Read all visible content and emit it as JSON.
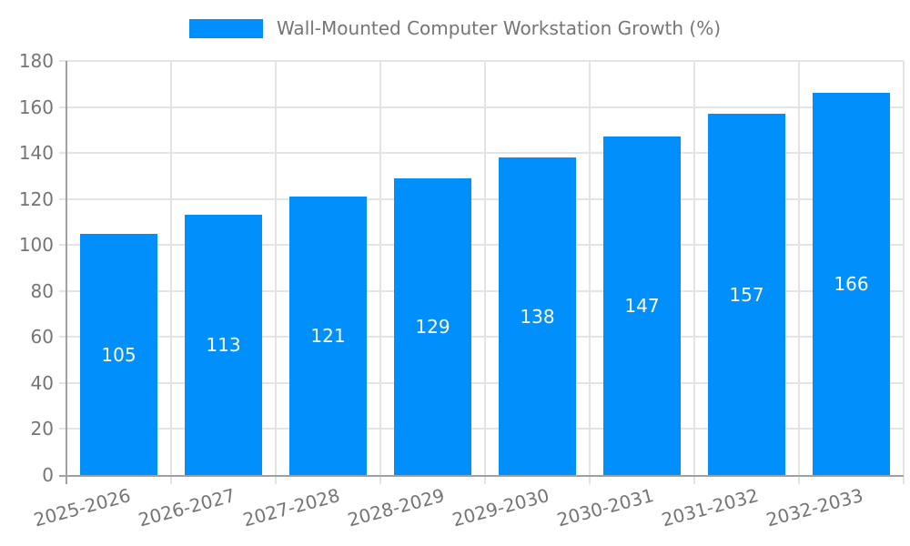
{
  "legend": {
    "label": "Wall-Mounted Computer Workstation Growth (%)"
  },
  "chart_data": {
    "type": "bar",
    "title": "",
    "series_name": "Wall-Mounted Computer Workstation Growth (%)",
    "categories": [
      "2025-2026",
      "2026-2027",
      "2027-2028",
      "2028-2029",
      "2029-2030",
      "2030-2031",
      "2031-2032",
      "2032-2033"
    ],
    "values": [
      105,
      113,
      121,
      129,
      138,
      147,
      157,
      166
    ],
    "bar_labels": [
      "105",
      "113",
      "121",
      "129",
      "138",
      "147",
      "157",
      "166"
    ],
    "xlabel": "",
    "ylabel": "",
    "ylim": [
      0,
      180
    ],
    "yticks": [
      0,
      20,
      40,
      60,
      80,
      100,
      120,
      140,
      160,
      180
    ],
    "grid": true,
    "legend_position": "top-center",
    "x_label_rotation_deg": -15,
    "colors": {
      "bar": "#008FFB",
      "text": "#757575",
      "bar_label_text": "#ffffff",
      "grid": "#e4e4e4",
      "axis": "#a0a0a0"
    }
  }
}
